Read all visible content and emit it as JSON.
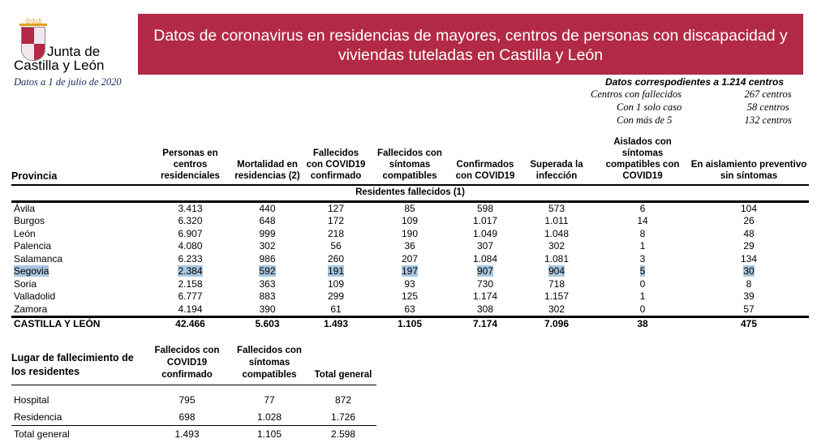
{
  "logo": {
    "line1": "Junta de",
    "line2": "Castilla y León"
  },
  "date": "Datos a 1 de julio de 2020",
  "banner": {
    "title": "Datos de coronavirus en residencias de mayores, centros de personas con discapacidad y viviendas tuteladas en Castilla y León"
  },
  "summary": {
    "title": "Datos correspodientes a 1.214 centros",
    "rows": [
      {
        "label": "Centros con fallecidos",
        "value": "267 centros"
      },
      {
        "label": "Con 1 solo caso",
        "value": "58 centros"
      },
      {
        "label": "Con más de 5",
        "value": "132 centros"
      }
    ]
  },
  "main_table": {
    "headers": [
      "Provincia",
      "Personas en centros residenciales",
      "Mortalidad en residencias (2)",
      "Fallecidos con COVID19 confirmado",
      "Fallecidos con síntomas compatibles",
      "Confirmados con COVID19",
      "Superada la infección",
      "Aislados con síntomas compatibles con COVID19",
      "En aislamiento preventivo sin síntomas"
    ],
    "subheader": "Residentes fallecidos (1)",
    "rows": [
      [
        "Ávila",
        "3.413",
        "440",
        "127",
        "85",
        "598",
        "573",
        "6",
        "104"
      ],
      [
        "Burgos",
        "6.320",
        "648",
        "172",
        "109",
        "1.017",
        "1.011",
        "14",
        "26"
      ],
      [
        "León",
        "6.907",
        "999",
        "218",
        "190",
        "1.049",
        "1.048",
        "8",
        "48"
      ],
      [
        "Palencia",
        "4.080",
        "302",
        "56",
        "36",
        "307",
        "302",
        "1",
        "29"
      ],
      [
        "Salamanca",
        "6.233",
        "986",
        "260",
        "207",
        "1.084",
        "1.081",
        "3",
        "134"
      ],
      [
        "Segovia",
        "2.384",
        "592",
        "191",
        "197",
        "907",
        "904",
        "5",
        "30"
      ],
      [
        "Soria",
        "2.158",
        "363",
        "109",
        "93",
        "730",
        "718",
        "0",
        "8"
      ],
      [
        "Valladolid",
        "6.777",
        "883",
        "299",
        "125",
        "1.174",
        "1.157",
        "1",
        "39"
      ],
      [
        "Zamora",
        "4.194",
        "390",
        "61",
        "63",
        "308",
        "302",
        "0",
        "57"
      ]
    ],
    "total": [
      "CASTILLA Y LEÓN",
      "42.466",
      "5.603",
      "1.493",
      "1.105",
      "7.174",
      "7.096",
      "38",
      "475"
    ],
    "highlighted_row": "Segovia",
    "highlight_color": "#a8c6df"
  },
  "place_table": {
    "headers": [
      "Lugar de fallecimiento de los residentes",
      "Fallecidos con COVID19 confirmado",
      "Fallecidos con síntomas compatibles",
      "Total general"
    ],
    "rows": [
      [
        "Hospital",
        "795",
        "77",
        "872"
      ],
      [
        "Residencia",
        "698",
        "1.028",
        "1.726"
      ]
    ],
    "total": [
      "Total general",
      "1.493",
      "1.105",
      "2.598"
    ]
  }
}
